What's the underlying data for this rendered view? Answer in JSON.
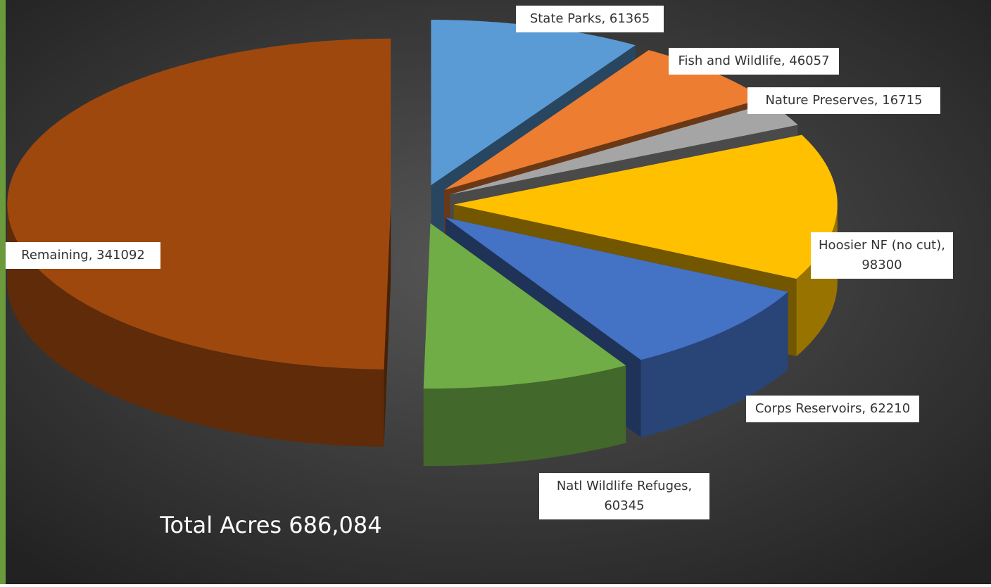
{
  "chart_data": {
    "type": "pie3d",
    "values": [
      61365,
      46057,
      16715,
      98300,
      62210,
      60345,
      341092
    ],
    "value_labels": [
      [
        "State Parks, 61365"
      ],
      [
        "Fish and Wildlife, 46057"
      ],
      [
        "Nature Preserves, 16715"
      ],
      [
        "Hoosier NF (no cut),",
        "98300"
      ],
      [
        "Corps Reservoirs, 62210"
      ],
      [
        "Natl Wildlife Refuges,",
        "60345"
      ],
      [
        "Remaining, 341092"
      ]
    ],
    "colors": [
      "#5b9bd5",
      "#ed7d31",
      "#a5a5a5",
      "#ffc000",
      "#4472c4",
      "#70ad47",
      "#9e480e"
    ],
    "annotation": "Total Acres 686,084"
  }
}
